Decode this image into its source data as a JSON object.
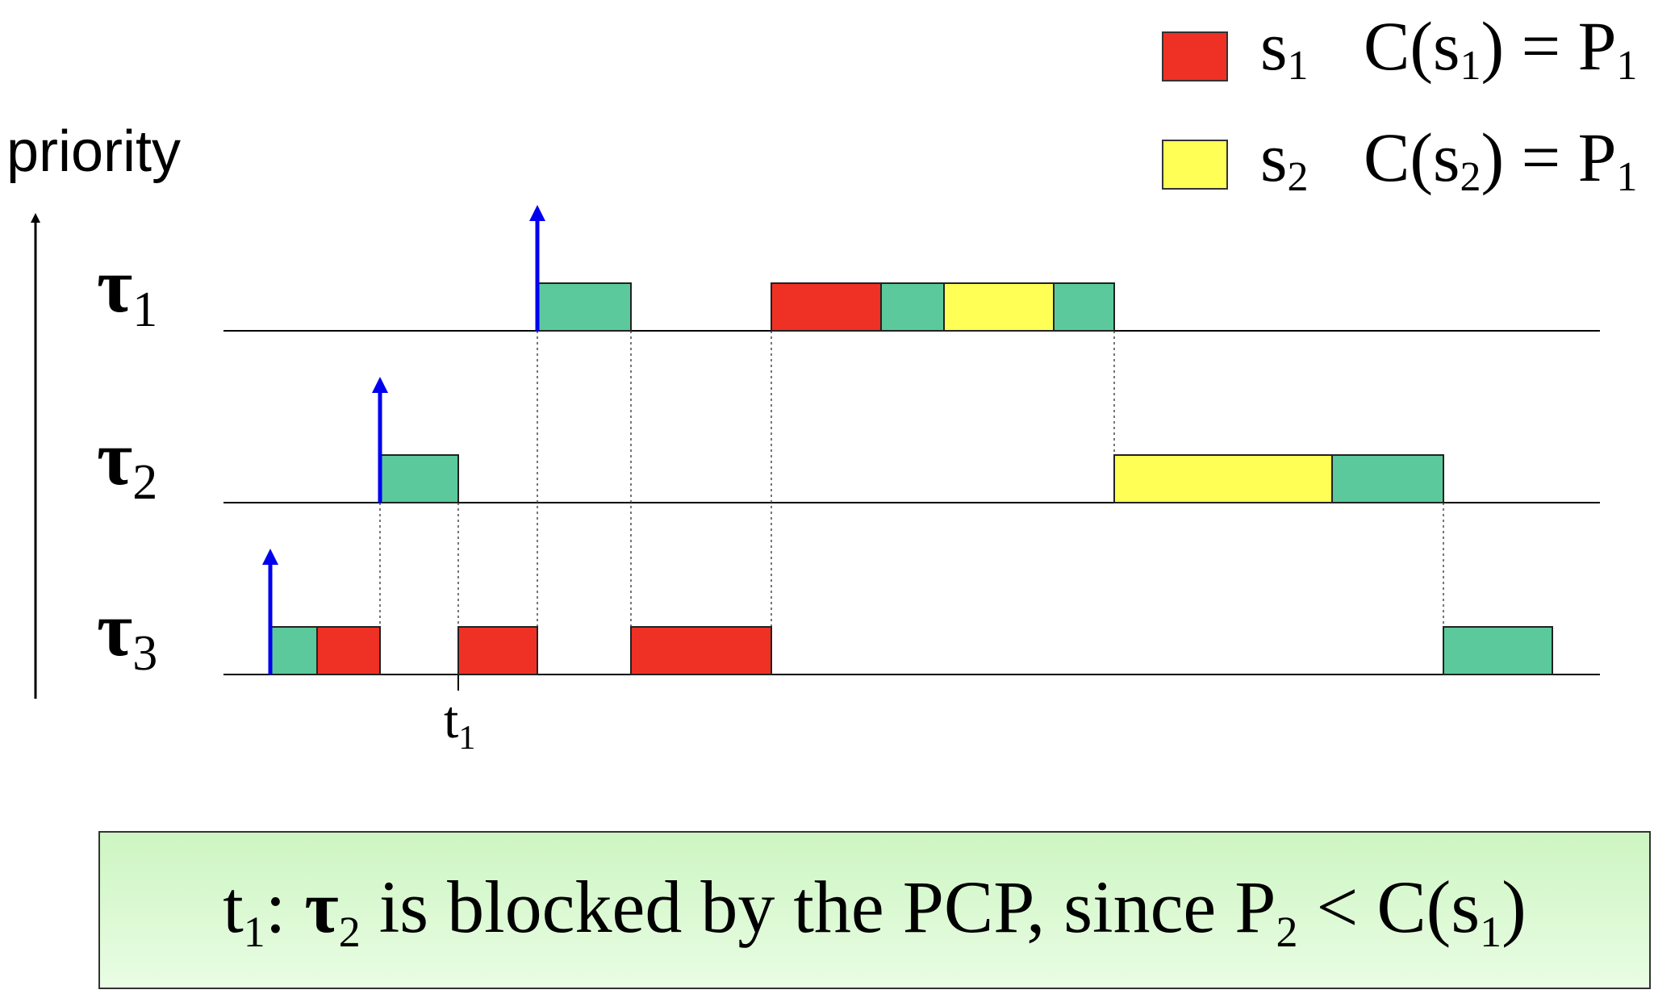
{
  "legend": [
    {
      "color": "#ee3124",
      "name": "s",
      "sub": "1",
      "formula_pre": "C(s",
      "formula_sub": "1",
      "formula_post": ") = P",
      "formula_post_sub": "1"
    },
    {
      "color": "#ffff55",
      "name": "s",
      "sub": "2",
      "formula_pre": "C(s",
      "formula_sub": "2",
      "formula_post": ") = P",
      "formula_post_sub": "1"
    }
  ],
  "y_axis_label": "priority",
  "tasks": [
    {
      "name": "τ",
      "sub": "1"
    },
    {
      "name": "τ",
      "sub": "2"
    },
    {
      "name": "τ",
      "sub": "3"
    }
  ],
  "time_marker": {
    "name": "t",
    "sub": "1"
  },
  "colors": {
    "normal": "#5bc99b",
    "s1": "#ee3124",
    "s2": "#ffff55",
    "arrival_arrow": "#0000ee"
  },
  "note": {
    "t": "t",
    "t_sub": "1",
    "colon": ": ",
    "tau": "τ",
    "tau_sub": "2",
    "text1": " is blocked by the PCP, since P",
    "p_sub": "2",
    "text2": " < C(s",
    "s_sub": "1",
    "text3": ")"
  }
}
